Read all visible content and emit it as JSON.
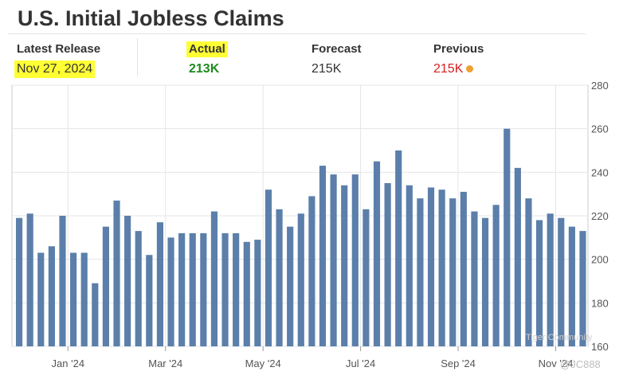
{
  "header": {
    "title": "U.S. Initial Jobless Claims"
  },
  "stats": {
    "latest_release_label": "Latest Release",
    "latest_release_value": "Nov 27, 2024",
    "actual_label": "Actual",
    "actual_value": "213K",
    "forecast_label": "Forecast",
    "forecast_value": "215K",
    "previous_label": "Previous",
    "previous_value": "215K"
  },
  "colors": {
    "bar": "#5b7faa",
    "grid": "#e6e6e6",
    "axis_text": "#555555",
    "highlight": "#ffff33",
    "actual": "#1f8a1f",
    "previous": "#d61f1f",
    "previous_dot": "#f0a030"
  },
  "watermark": {
    "brand": "Tiger Community",
    "handle": "@JC888"
  },
  "chart_data": {
    "type": "bar",
    "title": "",
    "xlabel": "",
    "ylabel": "",
    "ylim": [
      160,
      280
    ],
    "yticks": [
      160,
      180,
      200,
      220,
      240,
      260,
      280
    ],
    "grid": true,
    "y_axis_position": "right",
    "x_tick_labels": [
      "Jan '24",
      "Mar '24",
      "May '24",
      "Jul '24",
      "Sep '24",
      "Nov '24"
    ],
    "x_tick_after_bar_index": [
      4,
      13,
      22,
      31,
      40,
      49
    ],
    "values": [
      219,
      221,
      203,
      206,
      220,
      203,
      203,
      189,
      215,
      227,
      220,
      213,
      202,
      217,
      210,
      212,
      212,
      212,
      222,
      212,
      212,
      208,
      209,
      232,
      223,
      215,
      221,
      229,
      243,
      239,
      234,
      239,
      223,
      245,
      235,
      250,
      234,
      228,
      233,
      232,
      228,
      231,
      222,
      219,
      225,
      260,
      242,
      228,
      218,
      221,
      219,
      215,
      213
    ]
  }
}
